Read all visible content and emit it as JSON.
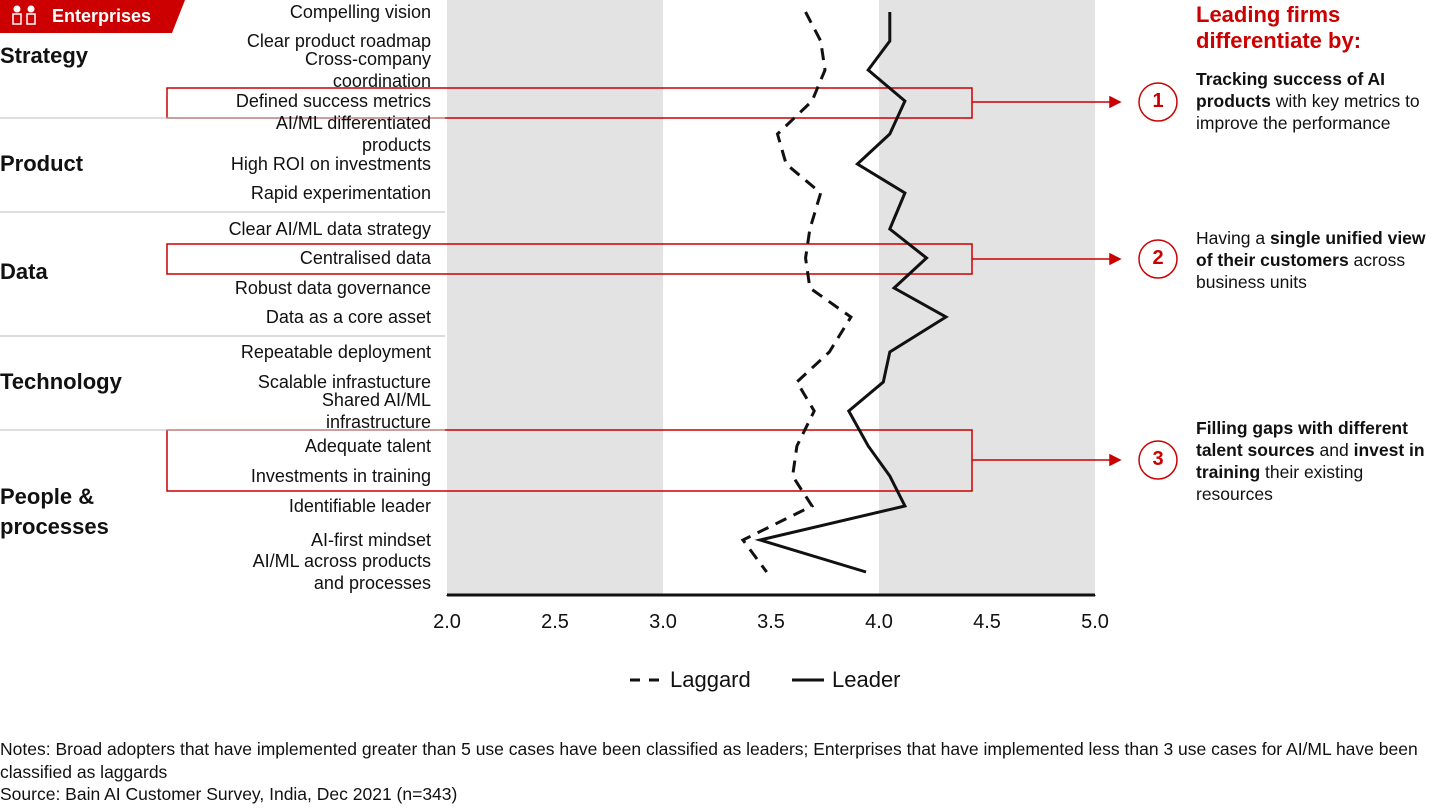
{
  "tag": "Enterprises",
  "chart_data": {
    "type": "line",
    "groups": [
      {
        "name": "Strategy",
        "categories": [
          "Compelling vision",
          "Clear product roadmap",
          "Cross-company coordination",
          "Defined success metrics"
        ]
      },
      {
        "name": "Product",
        "categories": [
          "AI/ML differentiated products",
          "High ROI on investments",
          "Rapid experimentation"
        ]
      },
      {
        "name": "Data",
        "categories": [
          "Clear AI/ML data strategy",
          "Centralised data",
          "Robust data governance",
          "Data as a core asset"
        ]
      },
      {
        "name": "Technology",
        "categories": [
          "Repeatable deployment",
          "Scalable infrastucture",
          "Shared AI/ML infrastructure"
        ]
      },
      {
        "name": "People & processes",
        "categories": [
          "Adequate talent",
          "Investments in training",
          "Identifiable leader",
          "AI-first mindset",
          "AI/ML across products and processes"
        ]
      }
    ],
    "series": [
      {
        "name": "Laggard",
        "color": "#111111",
        "dash": true,
        "values": [
          3.66,
          3.73,
          3.75,
          3.69,
          3.53,
          3.57,
          3.73,
          3.68,
          3.66,
          3.68,
          3.87,
          3.77,
          3.62,
          3.7,
          3.62,
          3.6,
          3.69,
          3.37,
          3.48
        ]
      },
      {
        "name": "Leader",
        "color": "#111111",
        "dash": false,
        "values": [
          4.05,
          4.05,
          3.95,
          4.12,
          4.05,
          3.9,
          4.12,
          4.05,
          4.22,
          4.07,
          4.31,
          4.05,
          4.02,
          3.86,
          3.95,
          4.05,
          4.12,
          3.45,
          3.94
        ]
      }
    ],
    "xlim": [
      2,
      5
    ],
    "xticks": [
      {
        "value": 2,
        "label": "2.0"
      },
      {
        "value": 2.5,
        "label": "2.5"
      },
      {
        "value": 3,
        "label": "3.0"
      },
      {
        "value": 3.5,
        "label": "3.5"
      },
      {
        "value": 4,
        "label": "4.0"
      },
      {
        "value": 4.5,
        "label": "4.5"
      },
      {
        "value": 5,
        "label": "5.0"
      }
    ],
    "shaded_ranges": [
      [
        2,
        3
      ],
      [
        4,
        5
      ]
    ]
  },
  "callouts": {
    "title": "Leading firms differentiate by:",
    "items": [
      {
        "number": "1",
        "parts": [
          {
            "text": "Tracking success of AI products",
            "bold": true
          },
          {
            "text": " with key metrics to improve the performance",
            "bold": false
          }
        ]
      },
      {
        "number": "2",
        "parts": [
          {
            "text": "Having a ",
            "bold": false
          },
          {
            "text": "single unified view of their customers",
            "bold": true
          },
          {
            "text": " across business units",
            "bold": false
          }
        ]
      },
      {
        "number": "3",
        "parts": [
          {
            "text": "Filling gaps with different talent sources",
            "bold": true
          },
          {
            "text": " and ",
            "bold": false
          },
          {
            "text": "invest in training",
            "bold": true
          },
          {
            "text": " their existing resources",
            "bold": false
          }
        ]
      }
    ]
  },
  "notes": "Notes: Broad adopters that have implemented greater than 5 use cases have been classified as leaders; Enterprises that have implemented less than 3 use cases for AI/ML have been classified as laggards",
  "source": "Source: Bain AI Customer Survey, India, Dec 2021 (n=343)"
}
